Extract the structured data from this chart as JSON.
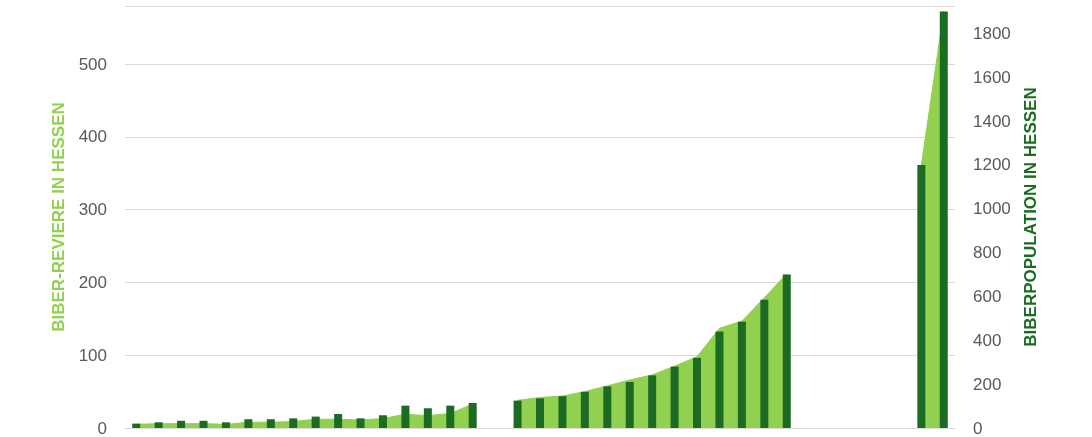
{
  "chart_data": {
    "type": "bar",
    "ylabel": "BIBER-REVIERE IN HESSEN",
    "y2label": "BIBERPOPULATION IN HESSEN",
    "categories": [
      null,
      null,
      null,
      null,
      null,
      null,
      null,
      null,
      null,
      null,
      null,
      null,
      null,
      null,
      null,
      null,
      null,
      null,
      null,
      null,
      null,
      null,
      null,
      null,
      null,
      null,
      null,
      null,
      null,
      null,
      null,
      null,
      null,
      null,
      null,
      null,
      null
    ],
    "series": [
      {
        "type": "area",
        "color": "#92d050",
        "values": [
          5,
          6,
          6,
          6,
          5,
          8,
          8,
          9,
          12,
          12,
          11,
          13,
          19,
          17,
          20,
          33,
          null,
          38,
          42,
          44,
          50,
          58,
          66,
          73,
          85,
          98,
          137,
          147,
          179,
          212,
          null,
          null,
          null,
          null,
          null,
          361,
          573
        ]
      },
      {
        "axis": "y2",
        "color": "#1b6b23",
        "values": [
          20,
          26,
          33,
          33,
          26,
          40,
          40,
          44,
          52,
          64,
          44,
          58,
          102,
          90,
          102,
          114,
          null,
          125,
          135,
          145,
          165,
          190,
          210,
          240,
          280,
          320,
          440,
          485,
          585,
          700,
          null,
          null,
          null,
          null,
          null,
          1200,
          1900
        ]
      }
    ],
    "ylim": [
      0,
      580
    ],
    "yticks": [
      0,
      100,
      200,
      300,
      400,
      500
    ],
    "y2lim": [
      0,
      1925
    ],
    "y2ticks": [
      0,
      200,
      400,
      600,
      800,
      1000,
      1200,
      1400,
      1600,
      1800
    ],
    "grid": "y",
    "tick_labels": "y"
  }
}
